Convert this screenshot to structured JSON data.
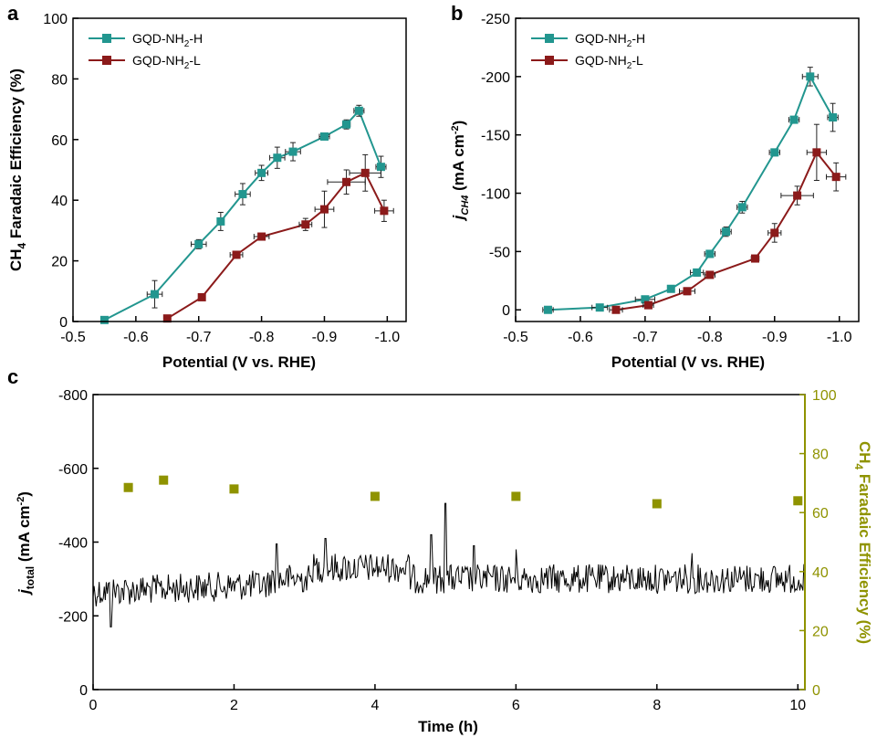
{
  "colors": {
    "teal": "#22968f",
    "red": "#8b1a1a",
    "olive": "#8f9300",
    "black": "#000000"
  },
  "chart_data": [
    {
      "panel": "a",
      "type": "line",
      "xlabel": "Potential (V vs. RHE)",
      "ylabel_main": "CH",
      "ylabel_sub": "4",
      "ylabel_rest": " Faradaic Efficiency (%)",
      "xlim": [
        -0.5,
        -1.03
      ],
      "ylim": [
        0,
        100
      ],
      "xticks": [
        -0.5,
        -0.6,
        -0.7,
        -0.8,
        -0.9,
        -1.0
      ],
      "xtick_labels": [
        "-0.5",
        "-0.6",
        "-0.7",
        "-0.8",
        "-0.9",
        "-1.0"
      ],
      "yticks": [
        0,
        20,
        40,
        60,
        80,
        100
      ],
      "ytick_labels": [
        "0",
        "20",
        "40",
        "60",
        "80",
        "100"
      ],
      "legend_position": "top-left",
      "series": [
        {
          "name_main": "GQD-NH",
          "name_sub": "2",
          "name_rest": "-H",
          "color": "#22968f",
          "x": [
            -0.55,
            -0.63,
            -0.7,
            -0.735,
            -0.77,
            -0.8,
            -0.825,
            -0.85,
            -0.9,
            -0.935,
            -0.955,
            -0.99
          ],
          "y": [
            0.5,
            9,
            25.5,
            33,
            42,
            49,
            54,
            56,
            61,
            65,
            69.5,
            51
          ],
          "yerr": [
            0.8,
            4.5,
            1.5,
            3,
            3.5,
            2.5,
            3.5,
            3,
            1,
            1.5,
            1.8,
            3.5
          ],
          "xerr": [
            0,
            0.012,
            0.012,
            0.005,
            0.012,
            0.01,
            0.012,
            0.012,
            0.008,
            0.006,
            0.008,
            0.008
          ]
        },
        {
          "name_main": "GQD-NH",
          "name_sub": "2",
          "name_rest": "-L",
          "color": "#8b1a1a",
          "x": [
            -0.65,
            -0.705,
            -0.76,
            -0.8,
            -0.87,
            -0.9,
            -0.935,
            -0.965,
            -0.995
          ],
          "y": [
            1,
            8,
            22,
            28,
            32,
            37,
            46,
            49,
            36.5
          ],
          "yerr": [
            0.8,
            0.8,
            1,
            1,
            2,
            6,
            4,
            6,
            3.5
          ],
          "xerr": [
            0,
            0.005,
            0.01,
            0.012,
            0.01,
            0.015,
            0.03,
            0.025,
            0.015
          ]
        }
      ]
    },
    {
      "panel": "b",
      "type": "line",
      "xlabel": "Potential (V vs. RHE)",
      "ylabel_main": "j",
      "ylabel_sub": "CH4",
      "ylabel_rest": " (mA cm",
      "ylabel_sup": "-2",
      "ylabel_end": ")",
      "xlim": [
        -0.5,
        -1.03
      ],
      "ylim": [
        10,
        -250
      ],
      "xticks": [
        -0.5,
        -0.6,
        -0.7,
        -0.8,
        -0.9,
        -1.0
      ],
      "xtick_labels": [
        "-0.5",
        "-0.6",
        "-0.7",
        "-0.8",
        "-0.9",
        "-1.0"
      ],
      "yticks": [
        0,
        -50,
        -100,
        -150,
        -200,
        -250
      ],
      "ytick_labels": [
        "0",
        "-50",
        "-100",
        "-150",
        "-200",
        "-250"
      ],
      "legend_position": "top-left",
      "series": [
        {
          "name_main": "GQD-NH",
          "name_sub": "2",
          "name_rest": "-H",
          "color": "#22968f",
          "x": [
            -0.55,
            -0.63,
            -0.7,
            -0.74,
            -0.78,
            -0.8,
            -0.825,
            -0.85,
            -0.9,
            -0.93,
            -0.955,
            -0.99
          ],
          "y": [
            0,
            -2,
            -9,
            -18,
            -32,
            -48,
            -67,
            -88,
            -135,
            -163,
            -200,
            -165
          ],
          "yerr": [
            1,
            1,
            2,
            2,
            3,
            3,
            4,
            5,
            3,
            2,
            8,
            12
          ],
          "xerr": [
            0.008,
            0.012,
            0.015,
            0.005,
            0.01,
            0.008,
            0.008,
            0.008,
            0.008,
            0.008,
            0.012,
            0.008
          ]
        },
        {
          "name_main": "GQD-NH",
          "name_sub": "2",
          "name_rest": "-L",
          "color": "#8b1a1a",
          "x": [
            -0.655,
            -0.705,
            -0.765,
            -0.8,
            -0.87,
            -0.9,
            -0.935,
            -0.965,
            -0.995
          ],
          "y": [
            0,
            -4,
            -16,
            -30,
            -44,
            -66,
            -98,
            -135,
            -114
          ],
          "yerr": [
            1,
            1,
            3,
            2,
            1,
            8,
            8,
            24,
            12
          ],
          "xerr": [
            0.01,
            0.008,
            0.012,
            0.008,
            0.006,
            0.01,
            0.025,
            0.015,
            0.015
          ]
        }
      ]
    },
    {
      "panel": "c",
      "type": "line",
      "xlabel": "Time (h)",
      "ylabel_main": "j",
      "ylabel_sub": "total",
      "ylabel_rest": " (mA cm",
      "ylabel_sup": "-2",
      "ylabel_end": ")",
      "y2label_main": "CH",
      "y2label_sub": "4",
      "y2label_rest": " Faradaic Efficiency (%)",
      "xlim": [
        0,
        10.1
      ],
      "ylim": [
        0,
        -800
      ],
      "y2lim": [
        0,
        100
      ],
      "xticks": [
        0,
        2,
        4,
        6,
        8,
        10
      ],
      "xtick_labels": [
        "0",
        "2",
        "4",
        "6",
        "8",
        "10"
      ],
      "yticks": [
        0,
        -200,
        -400,
        -600,
        -800
      ],
      "ytick_labels": [
        "0",
        "-200",
        "-400",
        "-600",
        "-800"
      ],
      "y2ticks": [
        0,
        20,
        40,
        60,
        80,
        100
      ],
      "y2tick_labels": [
        "0",
        "20",
        "40",
        "60",
        "80",
        "100"
      ],
      "current_trace": {
        "color": "#000000",
        "t_range": [
          0,
          10.1
        ],
        "baseline": -300,
        "noise_amplitude": 40,
        "spikes": [
          {
            "t": 0.25,
            "value": -170
          },
          {
            "t": 2.6,
            "value": -395
          },
          {
            "t": 3.3,
            "value": -410
          },
          {
            "t": 4.8,
            "value": -420
          },
          {
            "t": 5.0,
            "value": -505
          },
          {
            "t": 5.4,
            "value": -390
          },
          {
            "t": 6.0,
            "value": -380
          },
          {
            "t": 8.5,
            "value": -370
          }
        ]
      },
      "fe_series": {
        "color": "#8f9300",
        "x": [
          0.5,
          1.0,
          2.0,
          4.0,
          6.0,
          8.0,
          10.0
        ],
        "y": [
          68.5,
          71,
          68,
          65.5,
          65.5,
          63,
          64
        ]
      }
    }
  ]
}
